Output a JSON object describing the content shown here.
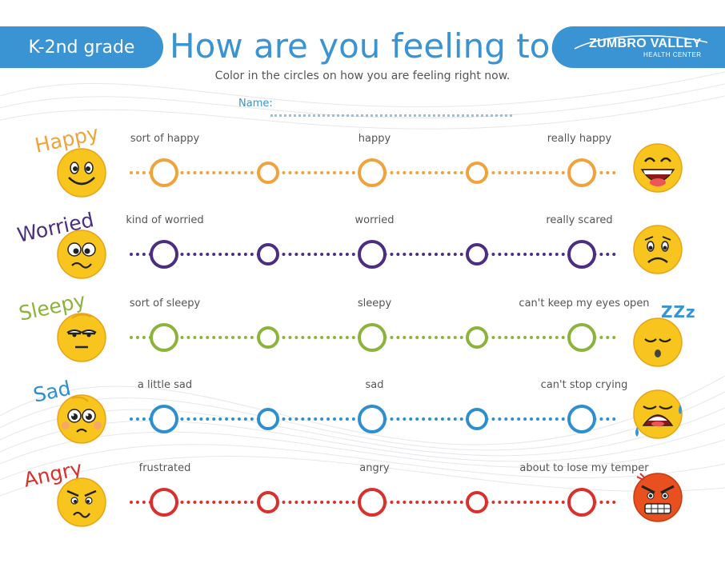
{
  "header": {
    "grade_label": "K-2nd grade",
    "title": "How are you feeling today?",
    "brand_name": "ZUMBRO VALLEY",
    "brand_sub": "HEALTH CENTER"
  },
  "instruction": "Color in the circles on how you are feeling right now.",
  "name_label": "Name:",
  "colors": {
    "accent": "#3a93d2",
    "face_yellow": "#f7c51e",
    "face_outline": "#e8a317",
    "happy": "#f0a23c",
    "worried": "#4b2e83",
    "sleepy": "#8cb33c",
    "sad": "#2e8fd0",
    "angry": "#d9302e"
  },
  "rows": [
    {
      "key": "happy",
      "name": "Happy",
      "labels": [
        "sort of happy",
        "happy",
        "really happy"
      ]
    },
    {
      "key": "worried",
      "name": "Worried",
      "labels": [
        "kind of worried",
        "worried",
        "really scared"
      ]
    },
    {
      "key": "sleepy",
      "name": "Sleepy",
      "labels": [
        "sort of sleepy",
        "sleepy",
        "can't keep my eyes open"
      ],
      "zzz": "ZZz"
    },
    {
      "key": "sad",
      "name": "Sad",
      "labels": [
        "a little sad",
        "sad",
        "can't stop crying"
      ]
    },
    {
      "key": "angry",
      "name": "Angry",
      "labels": [
        "frustrated",
        "angry",
        "about to lose my temper"
      ]
    }
  ]
}
